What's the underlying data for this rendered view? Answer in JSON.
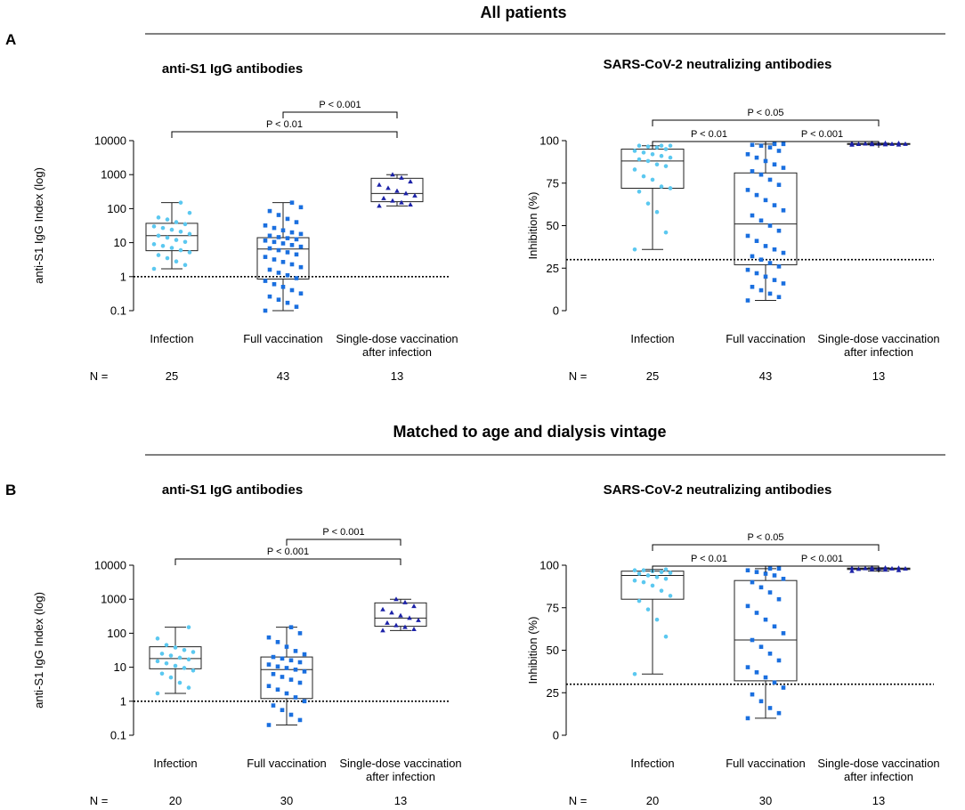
{
  "sections": [
    {
      "letter": "A",
      "title": "All patients"
    },
    {
      "letter": "B",
      "title": "Matched to age and dialysis vintage"
    }
  ],
  "colors": {
    "infection": "#5bc8f0",
    "full_vaccination": "#1a6fdf",
    "single_dose": "#1c22a8",
    "box": "#222222",
    "threshold": "#000000"
  },
  "chart_data": [
    {
      "id": "A-left",
      "section": 0,
      "type": "box",
      "title": "anti-S1 IgG antibodies",
      "ylabel": "anti-S1 IgG Index (log)",
      "yscale": "log",
      "ylim": [
        0.1,
        10000
      ],
      "yticks": [
        0.1,
        1,
        10,
        100,
        1000,
        10000
      ],
      "ytick_labels": [
        "0.1",
        "1",
        "10",
        "100",
        "1000",
        "10000"
      ],
      "threshold": 1,
      "categories": [
        "Infection",
        "Full vaccination",
        "Single-dose vaccination after infection"
      ],
      "category_lines": [
        [
          "Infection"
        ],
        [
          "Full vaccination"
        ],
        [
          "Single-dose vaccination",
          "after infection"
        ]
      ],
      "n_label": "N =",
      "n": [
        "25",
        "43",
        "13"
      ],
      "boxes": [
        {
          "min": 1.7,
          "q1": 5.8,
          "median": 16,
          "q3": 37,
          "max": 150
        },
        {
          "min": 0.1,
          "q1": 0.85,
          "median": 6.5,
          "q3": 14,
          "max": 150
        },
        {
          "min": 120,
          "q1": 160,
          "median": 280,
          "q3": 780,
          "max": 1000
        }
      ],
      "points": [
        [
          1.7,
          2.2,
          2.8,
          3.5,
          4.3,
          5.2,
          6.0,
          7.0,
          8.0,
          9.0,
          10.5,
          12,
          14,
          16,
          18,
          21,
          24,
          27,
          30,
          35,
          40,
          48,
          55,
          75,
          150
        ],
        [
          0.1,
          0.13,
          0.17,
          0.21,
          0.26,
          0.32,
          0.4,
          0.5,
          0.6,
          0.75,
          0.9,
          1.1,
          1.3,
          1.6,
          1.9,
          2.3,
          2.7,
          3.2,
          3.8,
          4.5,
          5.2,
          6.0,
          6.8,
          7.6,
          8.5,
          9.5,
          10.5,
          11.5,
          12.5,
          13.5,
          14.5,
          16,
          18,
          20,
          23,
          27,
          32,
          40,
          50,
          65,
          85,
          110,
          150
        ],
        [
          120,
          130,
          150,
          170,
          200,
          240,
          280,
          330,
          400,
          500,
          620,
          800,
          1000
        ]
      ],
      "comparisons": [
        {
          "from": 0,
          "to": 2,
          "level": 1,
          "text": "P < 0.01"
        },
        {
          "from": 1,
          "to": 2,
          "level": 0,
          "text": "P < 0.001"
        }
      ]
    },
    {
      "id": "A-right",
      "section": 0,
      "type": "box",
      "title": "SARS-CoV-2 neutralizing antibodies",
      "ylabel": "Inhibition (%)",
      "yscale": "linear",
      "ylim": [
        0,
        100
      ],
      "yticks": [
        0,
        25,
        50,
        75,
        100
      ],
      "ytick_labels": [
        "0",
        "25",
        "50",
        "75",
        "100"
      ],
      "threshold": 30,
      "categories": [
        "Infection",
        "Full vaccination",
        "Single-dose vaccination after infection"
      ],
      "category_lines": [
        [
          "Infection"
        ],
        [
          "Full vaccination"
        ],
        [
          "Single-dose vaccination",
          "after infection"
        ]
      ],
      "n_label": "N =",
      "n": [
        "25",
        "43",
        "13"
      ],
      "boxes": [
        {
          "min": 36,
          "q1": 72,
          "median": 88,
          "q3": 95,
          "max": 97
        },
        {
          "min": 6,
          "q1": 27,
          "median": 51,
          "q3": 81,
          "max": 98
        },
        {
          "min": 97.5,
          "q1": 97.8,
          "median": 98,
          "q3": 98.3,
          "max": 98.5
        }
      ],
      "points": [
        [
          36,
          46,
          58,
          63,
          70,
          72,
          73,
          77,
          79,
          83,
          85,
          86,
          88,
          89,
          90,
          91,
          92,
          93,
          94,
          95,
          96,
          96.5,
          97,
          97,
          97
        ],
        [
          6,
          8,
          10,
          12,
          14,
          16,
          18,
          20,
          22,
          24,
          26,
          28,
          30,
          32,
          34,
          36,
          38,
          41,
          44,
          47,
          50,
          53,
          56,
          59,
          62,
          65,
          68,
          71,
          74,
          77,
          80,
          82,
          84,
          86,
          88,
          90,
          92,
          94,
          96,
          97,
          97.5,
          98,
          98
        ],
        [
          97.5,
          97.6,
          97.7,
          97.8,
          97.9,
          98,
          98,
          98.1,
          98.2,
          98.3,
          98.4,
          98.5,
          98.5
        ]
      ],
      "comparisons": [
        {
          "from": 0,
          "to": 1,
          "level": 1,
          "text": "P < 0.01"
        },
        {
          "from": 1,
          "to": 2,
          "level": 1,
          "text": "P < 0.001"
        },
        {
          "from": 0,
          "to": 2,
          "level": 0,
          "text": "P < 0.05"
        }
      ]
    },
    {
      "id": "B-left",
      "section": 1,
      "type": "box",
      "title": "anti-S1 IgG antibodies",
      "ylabel": "anti-S1 IgG Index (log)",
      "yscale": "log",
      "ylim": [
        0.1,
        10000
      ],
      "yticks": [
        0.1,
        1,
        10,
        100,
        1000,
        10000
      ],
      "ytick_labels": [
        "0.1",
        "1",
        "10",
        "100",
        "1000",
        "10000"
      ],
      "threshold": 1,
      "categories": [
        "Infection",
        "Full vaccination",
        "Single-dose vaccination after infection"
      ],
      "category_lines": [
        [
          "Infection"
        ],
        [
          "Full vaccination"
        ],
        [
          "Single-dose vaccination",
          "after infection"
        ]
      ],
      "n_label": "N =",
      "n": [
        "20",
        "30",
        "13"
      ],
      "boxes": [
        {
          "min": 1.7,
          "q1": 9,
          "median": 18,
          "q3": 40,
          "max": 150
        },
        {
          "min": 0.2,
          "q1": 1.2,
          "median": 8.5,
          "q3": 20,
          "max": 150
        },
        {
          "min": 120,
          "q1": 160,
          "median": 280,
          "q3": 780,
          "max": 1000
        }
      ],
      "points": [
        [
          1.7,
          2.5,
          3.5,
          5,
          6.5,
          8,
          9.5,
          11,
          13,
          15,
          17,
          19,
          22,
          25,
          28,
          32,
          38,
          45,
          70,
          150
        ],
        [
          0.2,
          0.28,
          0.4,
          0.55,
          0.75,
          1.0,
          1.3,
          1.7,
          2.2,
          2.8,
          3.5,
          4.3,
          5.2,
          6.3,
          7.5,
          8.5,
          9.5,
          10.5,
          12,
          14,
          16,
          18,
          20,
          24,
          30,
          40,
          55,
          75,
          100,
          150
        ],
        [
          120,
          130,
          150,
          170,
          200,
          240,
          280,
          330,
          400,
          500,
          620,
          800,
          1000
        ]
      ],
      "comparisons": [
        {
          "from": 0,
          "to": 2,
          "level": 1,
          "text": "P < 0.001"
        },
        {
          "from": 1,
          "to": 2,
          "level": 0,
          "text": "P < 0.001"
        }
      ]
    },
    {
      "id": "B-right",
      "section": 1,
      "type": "box",
      "title": "SARS-CoV-2 neutralizing antibodies",
      "ylabel": "Inhibition (%)",
      "yscale": "linear",
      "ylim": [
        0,
        100
      ],
      "yticks": [
        0,
        25,
        50,
        75,
        100
      ],
      "ytick_labels": [
        "0",
        "25",
        "50",
        "75",
        "100"
      ],
      "threshold": 30,
      "categories": [
        "Infection",
        "Full vaccination",
        "Single-dose vaccination after infection"
      ],
      "category_lines": [
        [
          "Infection"
        ],
        [
          "Full vaccination"
        ],
        [
          "Single-dose vaccination",
          "after infection"
        ]
      ],
      "n_label": "N =",
      "n": [
        "20",
        "30",
        "13"
      ],
      "boxes": [
        {
          "min": 36,
          "q1": 80,
          "median": 94,
          "q3": 96.5,
          "max": 97.5
        },
        {
          "min": 10,
          "q1": 32,
          "median": 56,
          "q3": 91,
          "max": 98
        },
        {
          "min": 96.5,
          "q1": 97.5,
          "median": 98,
          "q3": 98.3,
          "max": 98.5
        }
      ],
      "points": [
        [
          36,
          58,
          68,
          74,
          79,
          82,
          85,
          88,
          90,
          91,
          92,
          93,
          94,
          95,
          95.5,
          96,
          96.5,
          97,
          97,
          97.5
        ],
        [
          10,
          13,
          16,
          20,
          24,
          28,
          31,
          34,
          37,
          40,
          44,
          48,
          52,
          56,
          60,
          64,
          68,
          72,
          76,
          80,
          84,
          87,
          90,
          92,
          94,
          95,
          96,
          97,
          98,
          98
        ],
        [
          96.5,
          97,
          97.3,
          97.5,
          97.7,
          97.9,
          98,
          98,
          98.1,
          98.2,
          98.3,
          98.4,
          98.5
        ]
      ],
      "comparisons": [
        {
          "from": 0,
          "to": 1,
          "level": 1,
          "text": "P < 0.01"
        },
        {
          "from": 1,
          "to": 2,
          "level": 1,
          "text": "P < 0.001"
        },
        {
          "from": 0,
          "to": 2,
          "level": 0,
          "text": "P < 0.05"
        }
      ]
    }
  ]
}
